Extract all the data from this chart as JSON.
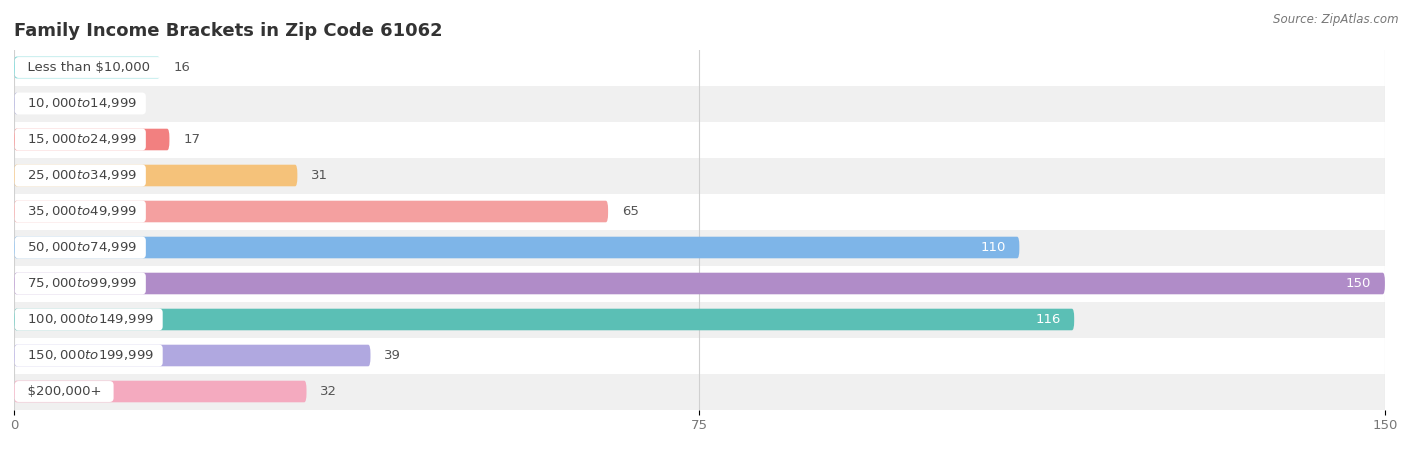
{
  "title": "Family Income Brackets in Zip Code 61062",
  "source": "Source: ZipAtlas.com",
  "categories": [
    "Less than $10,000",
    "$10,000 to $14,999",
    "$15,000 to $24,999",
    "$25,000 to $34,999",
    "$35,000 to $49,999",
    "$50,000 to $74,999",
    "$75,000 to $99,999",
    "$100,000 to $149,999",
    "$150,000 to $199,999",
    "$200,000+"
  ],
  "values": [
    16,
    0,
    17,
    31,
    65,
    110,
    150,
    116,
    39,
    32
  ],
  "bar_colors": [
    "#5ECECE",
    "#A8A8D8",
    "#F28080",
    "#F5C27A",
    "#F4A0A0",
    "#7EB5E8",
    "#B08CC8",
    "#5BBFB5",
    "#B0A8E0",
    "#F4AABF"
  ],
  "bg_row_colors": [
    "#F0F0F0",
    "#FFFFFF"
  ],
  "xlim": [
    0,
    150
  ],
  "xticks": [
    0,
    75,
    150
  ],
  "title_fontsize": 13,
  "label_fontsize": 9.5,
  "value_fontsize": 9.5,
  "bar_height": 0.6,
  "background_color": "#FFFFFF"
}
